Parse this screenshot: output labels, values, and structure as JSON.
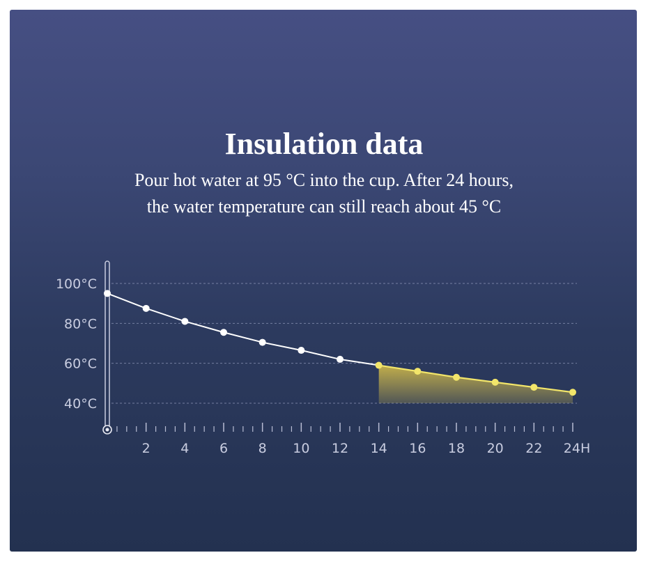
{
  "title": "Insulation data",
  "subtitle_line1": "Pour hot water at 95 °C into the cup. After 24 hours,",
  "subtitle_line2": "the water temperature can still reach about 45 °C",
  "colors": {
    "cooling_line": "#ffffff",
    "highlight_line": "#f2e56a",
    "highlight_fill": "#c9b44a"
  },
  "chart_data": {
    "type": "line",
    "x_ticks": [
      "2",
      "4",
      "6",
      "8",
      "10",
      "12",
      "14",
      "16",
      "18",
      "20",
      "22",
      "24H"
    ],
    "y_ticks": [
      "100°C",
      "80°C",
      "60°C",
      "40°C"
    ],
    "y_tick_values": [
      100,
      80,
      60,
      40
    ],
    "x": [
      0,
      2,
      4,
      6,
      8,
      10,
      12,
      14,
      16,
      18,
      20,
      22,
      24
    ],
    "y": [
      95,
      87.5,
      81,
      75.5,
      70.5,
      66.5,
      62,
      59,
      56,
      53,
      50.5,
      48,
      45.5
    ],
    "highlight_from_x": 14,
    "xlim": [
      0,
      24
    ],
    "ylim": [
      40,
      100
    ],
    "grid": true
  }
}
